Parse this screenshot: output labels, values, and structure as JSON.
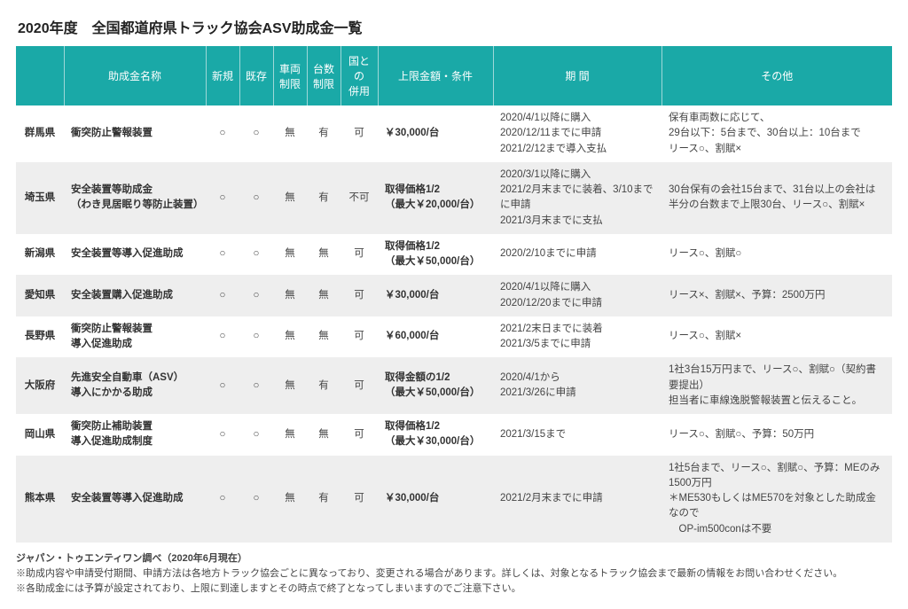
{
  "title": "2020年度　全国都道府県トラック協会ASV助成金一覧",
  "columns": {
    "pref": "",
    "name": "助成金名称",
    "new": "新規",
    "exist": "既存",
    "vehLimit": "車両\n制限",
    "numLimit": "台数\n制限",
    "combine": "国との\n併用",
    "upper": "上限金額・条件",
    "period": "期 間",
    "other": "その他"
  },
  "rows": [
    {
      "pref": "群馬県",
      "name": "衝突防止警報装置",
      "new": "○",
      "exist": "○",
      "vehLimit": "無",
      "numLimit": "有",
      "combine": "可",
      "upper": "￥30,000/台",
      "period": "2020/4/1以降に購入\n2020/12/11までに申請\n2021/2/12まで導入支払",
      "other": "保有車両数に応じて、\n29台以下：5台まで、30台以上：10台まで\nリース○、割賦×"
    },
    {
      "pref": "埼玉県",
      "name": "安全装置等助成金\n（わき見居眠り等防止装置）",
      "new": "○",
      "exist": "○",
      "vehLimit": "無",
      "numLimit": "有",
      "combine": "不可",
      "upper": "取得価格1/2\n（最大￥20,000/台）",
      "period": "2020/3/1以降に購入\n2021/2月末までに装着、3/10までに申請\n2021/3月末までに支払",
      "other": "30台保有の会社15台まで、31台以上の会社は\n半分の台数まで上限30台、リース○、割賦×"
    },
    {
      "pref": "新潟県",
      "name": "安全装置等導入促進助成",
      "new": "○",
      "exist": "○",
      "vehLimit": "無",
      "numLimit": "無",
      "combine": "可",
      "upper": "取得価格1/2\n（最大￥50,000/台）",
      "period": "2020/2/10までに申請",
      "other": "リース○、割賦○"
    },
    {
      "pref": "愛知県",
      "name": "安全装置購入促進助成",
      "new": "○",
      "exist": "○",
      "vehLimit": "無",
      "numLimit": "無",
      "combine": "可",
      "upper": "￥30,000/台",
      "period": "2020/4/1以降に購入\n2020/12/20までに申請",
      "other": "リース×、割賦×、予算：2500万円"
    },
    {
      "pref": "長野県",
      "name": "衝突防止警報装置\n導入促進助成",
      "new": "○",
      "exist": "○",
      "vehLimit": "無",
      "numLimit": "無",
      "combine": "可",
      "upper": "￥60,000/台",
      "period": "2021/2末日までに装着\n2021/3/5までに申請",
      "other": "リース○、割賦×"
    },
    {
      "pref": "大阪府",
      "name": "先進安全自動車（ASV）\n導入にかかる助成",
      "new": "○",
      "exist": "○",
      "vehLimit": "無",
      "numLimit": "有",
      "combine": "可",
      "upper": "取得金額の1/2\n（最大￥50,000/台）",
      "period": "2020/4/1から\n2021/3/26に申請",
      "other": "1社3台15万円まで、リース○、割賦○（契約書要提出）\n担当者に車線逸脱警報装置と伝えること。"
    },
    {
      "pref": "岡山県",
      "name": "衝突防止補助装置\n導入促進助成制度",
      "new": "○",
      "exist": "○",
      "vehLimit": "無",
      "numLimit": "無",
      "combine": "可",
      "upper": "取得価格1/2\n（最大￥30,000/台）",
      "period": "2021/3/15まで",
      "other": "リース○、割賦○、予算：50万円"
    },
    {
      "pref": "熊本県",
      "name": "安全装置等導入促進助成",
      "new": "○",
      "exist": "○",
      "vehLimit": "無",
      "numLimit": "有",
      "combine": "可",
      "upper": "￥30,000/台",
      "period": "2021/2月末までに申請",
      "other": "1社5台まで、リース○、割賦○、予算：MEのみ1500万円\n＊ME530もしくはME570を対象とした助成金なので\n　OP-im500conは不要"
    }
  ],
  "footer": {
    "source": "ジャパン・トゥエンティワン調べ（2020年6月現在）",
    "note1": "※助成内容や申請受付期間、申請方法は各地方トラック協会ごとに異なっており、変更される場合があります。詳しくは、対象となるトラック協会まで最新の情報をお問い合わせください。",
    "note2": "※各助成金には予算が設定されており、上限に到達しますとその時点で終了となってしまいますのでご注意下さい。"
  }
}
